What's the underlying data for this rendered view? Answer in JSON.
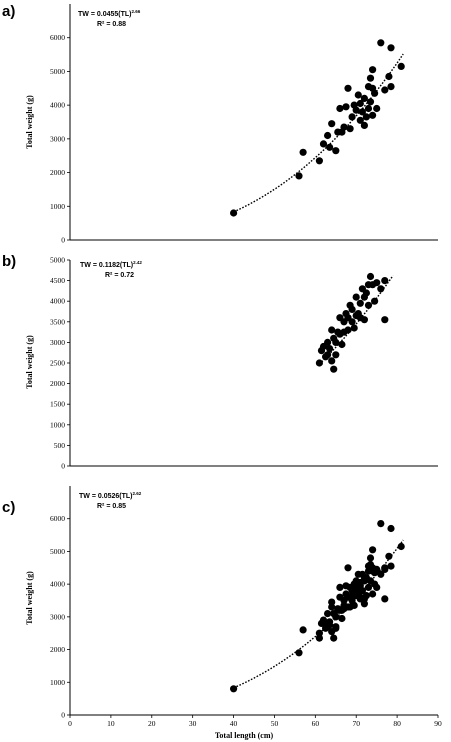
{
  "chart_data": [
    {
      "type": "scatter",
      "panel_label": "a)",
      "equation_lhs": "TW",
      "equation_main": " = 0.0455(TL)",
      "equation_exp": "2.66",
      "r2_text": "R² = 0.88",
      "ylabel": "Total weight (g)",
      "xlabel": "",
      "xlim": [
        0,
        90
      ],
      "ylim": [
        0,
        7000
      ],
      "yticks": [
        "0",
        "1000",
        "2000",
        "3000",
        "4000",
        "5000",
        "6000"
      ],
      "xticks": [],
      "trendline": {
        "style": "dotted",
        "a": 0.0455,
        "b": 2.66,
        "x_range": [
          40,
          81.5
        ]
      },
      "points": [
        [
          40,
          800
        ],
        [
          56,
          1900
        ],
        [
          57,
          2600
        ],
        [
          61,
          2350
        ],
        [
          62,
          2850
        ],
        [
          63,
          3100
        ],
        [
          63.5,
          2750
        ],
        [
          64,
          3450
        ],
        [
          65,
          2650
        ],
        [
          65.5,
          3200
        ],
        [
          66,
          3900
        ],
        [
          66.5,
          3200
        ],
        [
          67,
          3350
        ],
        [
          67.5,
          3950
        ],
        [
          68,
          4500
        ],
        [
          68.5,
          3300
        ],
        [
          69,
          3650
        ],
        [
          69.5,
          4000
        ],
        [
          70,
          3850
        ],
        [
          70.5,
          4300
        ],
        [
          71,
          4050
        ],
        [
          71,
          3550
        ],
        [
          71.5,
          3800
        ],
        [
          72,
          4200
        ],
        [
          72,
          3400
        ],
        [
          72.5,
          3650
        ],
        [
          73,
          4550
        ],
        [
          73,
          3900
        ],
        [
          73.5,
          4800
        ],
        [
          73.5,
          4100
        ],
        [
          74,
          5050
        ],
        [
          74,
          4500
        ],
        [
          74,
          3700
        ],
        [
          74.5,
          4350
        ],
        [
          75,
          3900
        ],
        [
          76,
          5850
        ],
        [
          77,
          4450
        ],
        [
          78,
          4850
        ],
        [
          78.5,
          5700
        ],
        [
          78.5,
          4550
        ],
        [
          81,
          5150
        ]
      ]
    },
    {
      "type": "scatter",
      "panel_label": "b)",
      "equation_lhs": "TW",
      "equation_main": " = 0.1182(TL)",
      "equation_exp": "2.42",
      "r2_text": "R² = 0.72",
      "ylabel": "Total weight (g)",
      "xlabel": "",
      "xlim": [
        0,
        90
      ],
      "ylim": [
        0,
        5000
      ],
      "yticks": [
        "0",
        "500",
        "1000",
        "1500",
        "2000",
        "2500",
        "3000",
        "3500",
        "4000",
        "4500",
        "5000"
      ],
      "xticks": [],
      "trendline": {
        "style": "dotted",
        "a": 0.1182,
        "b": 2.42,
        "x_range": [
          61,
          79
        ]
      },
      "points": [
        [
          61,
          2500
        ],
        [
          61.5,
          2800
        ],
        [
          62,
          2900
        ],
        [
          62.5,
          2650
        ],
        [
          63,
          2700
        ],
        [
          63,
          3000
        ],
        [
          63.5,
          2850
        ],
        [
          64,
          3300
        ],
        [
          64,
          2550
        ],
        [
          64.5,
          2350
        ],
        [
          64.5,
          3100
        ],
        [
          65,
          3000
        ],
        [
          65,
          2700
        ],
        [
          65.5,
          3250
        ],
        [
          66,
          3200
        ],
        [
          66,
          3600
        ],
        [
          66.5,
          2950
        ],
        [
          67,
          3250
        ],
        [
          67,
          3500
        ],
        [
          67.5,
          3700
        ],
        [
          68,
          3600
        ],
        [
          68,
          3300
        ],
        [
          68.5,
          3900
        ],
        [
          69,
          3500
        ],
        [
          69,
          3800
        ],
        [
          69.5,
          3350
        ],
        [
          70,
          3650
        ],
        [
          70,
          4100
        ],
        [
          70.5,
          3700
        ],
        [
          71,
          3600
        ],
        [
          71,
          3950
        ],
        [
          71.5,
          4300
        ],
        [
          72,
          3550
        ],
        [
          72,
          4100
        ],
        [
          72.5,
          4200
        ],
        [
          73,
          4400
        ],
        [
          73,
          3900
        ],
        [
          73.5,
          4600
        ],
        [
          74,
          4400
        ],
        [
          74.5,
          4000
        ],
        [
          75,
          4450
        ],
        [
          76,
          4300
        ],
        [
          77,
          4500
        ],
        [
          77,
          3550
        ]
      ]
    },
    {
      "type": "scatter",
      "panel_label": "c)",
      "equation_lhs": "TW",
      "equation_main": " = 0.0526(TL)",
      "equation_exp": "2.62",
      "r2_text": "R² = 0.85",
      "ylabel": "Total weight (g)",
      "xlabel": "Total length (cm)",
      "xlim": [
        0,
        90
      ],
      "ylim": [
        0,
        7000
      ],
      "yticks": [
        "0",
        "1000",
        "2000",
        "3000",
        "4000",
        "5000",
        "6000"
      ],
      "xticks": [
        "0",
        "10",
        "20",
        "30",
        "40",
        "50",
        "60",
        "70",
        "80",
        "90"
      ],
      "trendline": {
        "style": "dotted",
        "a": 0.0526,
        "b": 2.62,
        "x_range": [
          40,
          81.5
        ]
      },
      "points": [
        [
          40,
          800
        ],
        [
          56,
          1900
        ],
        [
          57,
          2600
        ],
        [
          61,
          2350
        ],
        [
          61,
          2500
        ],
        [
          61.5,
          2800
        ],
        [
          62,
          2850
        ],
        [
          62,
          2900
        ],
        [
          62.5,
          2650
        ],
        [
          63,
          2700
        ],
        [
          63,
          3100
        ],
        [
          63.5,
          2750
        ],
        [
          63.5,
          2850
        ],
        [
          64,
          3450
        ],
        [
          64,
          3300
        ],
        [
          64,
          2550
        ],
        [
          64.5,
          2350
        ],
        [
          64.5,
          3100
        ],
        [
          65,
          2650
        ],
        [
          65,
          3000
        ],
        [
          65,
          2700
        ],
        [
          65.5,
          3200
        ],
        [
          65.5,
          3250
        ],
        [
          66,
          3900
        ],
        [
          66,
          3200
        ],
        [
          66,
          3600
        ],
        [
          66.5,
          3200
        ],
        [
          66.5,
          2950
        ],
        [
          67,
          3350
        ],
        [
          67,
          3250
        ],
        [
          67,
          3500
        ],
        [
          67.5,
          3950
        ],
        [
          67.5,
          3700
        ],
        [
          68,
          4500
        ],
        [
          68,
          3600
        ],
        [
          68,
          3300
        ],
        [
          68.5,
          3300
        ],
        [
          68.5,
          3900
        ],
        [
          69,
          3650
        ],
        [
          69,
          3500
        ],
        [
          69,
          3800
        ],
        [
          69.5,
          4000
        ],
        [
          69.5,
          3350
        ],
        [
          70,
          3850
        ],
        [
          70,
          3650
        ],
        [
          70,
          4100
        ],
        [
          70.5,
          4300
        ],
        [
          70.5,
          3700
        ],
        [
          71,
          4050
        ],
        [
          71,
          3550
        ],
        [
          71,
          3600
        ],
        [
          71,
          3950
        ],
        [
          71.5,
          3800
        ],
        [
          71.5,
          4300
        ],
        [
          72,
          4200
        ],
        [
          72,
          3400
        ],
        [
          72,
          3550
        ],
        [
          72,
          4100
        ],
        [
          72.5,
          3650
        ],
        [
          72.5,
          4200
        ],
        [
          73,
          4550
        ],
        [
          73,
          3900
        ],
        [
          73,
          4400
        ],
        [
          73.5,
          4800
        ],
        [
          73.5,
          4100
        ],
        [
          73.5,
          4600
        ],
        [
          74,
          5050
        ],
        [
          74,
          4500
        ],
        [
          74,
          3700
        ],
        [
          74,
          4400
        ],
        [
          74.5,
          4350
        ],
        [
          74.5,
          4000
        ],
        [
          75,
          3900
        ],
        [
          75,
          4450
        ],
        [
          76,
          5850
        ],
        [
          76,
          4300
        ],
        [
          77,
          4450
        ],
        [
          77,
          4500
        ],
        [
          77,
          3550
        ],
        [
          78,
          4850
        ],
        [
          78.5,
          5700
        ],
        [
          78.5,
          4550
        ],
        [
          81,
          5150
        ]
      ]
    }
  ]
}
